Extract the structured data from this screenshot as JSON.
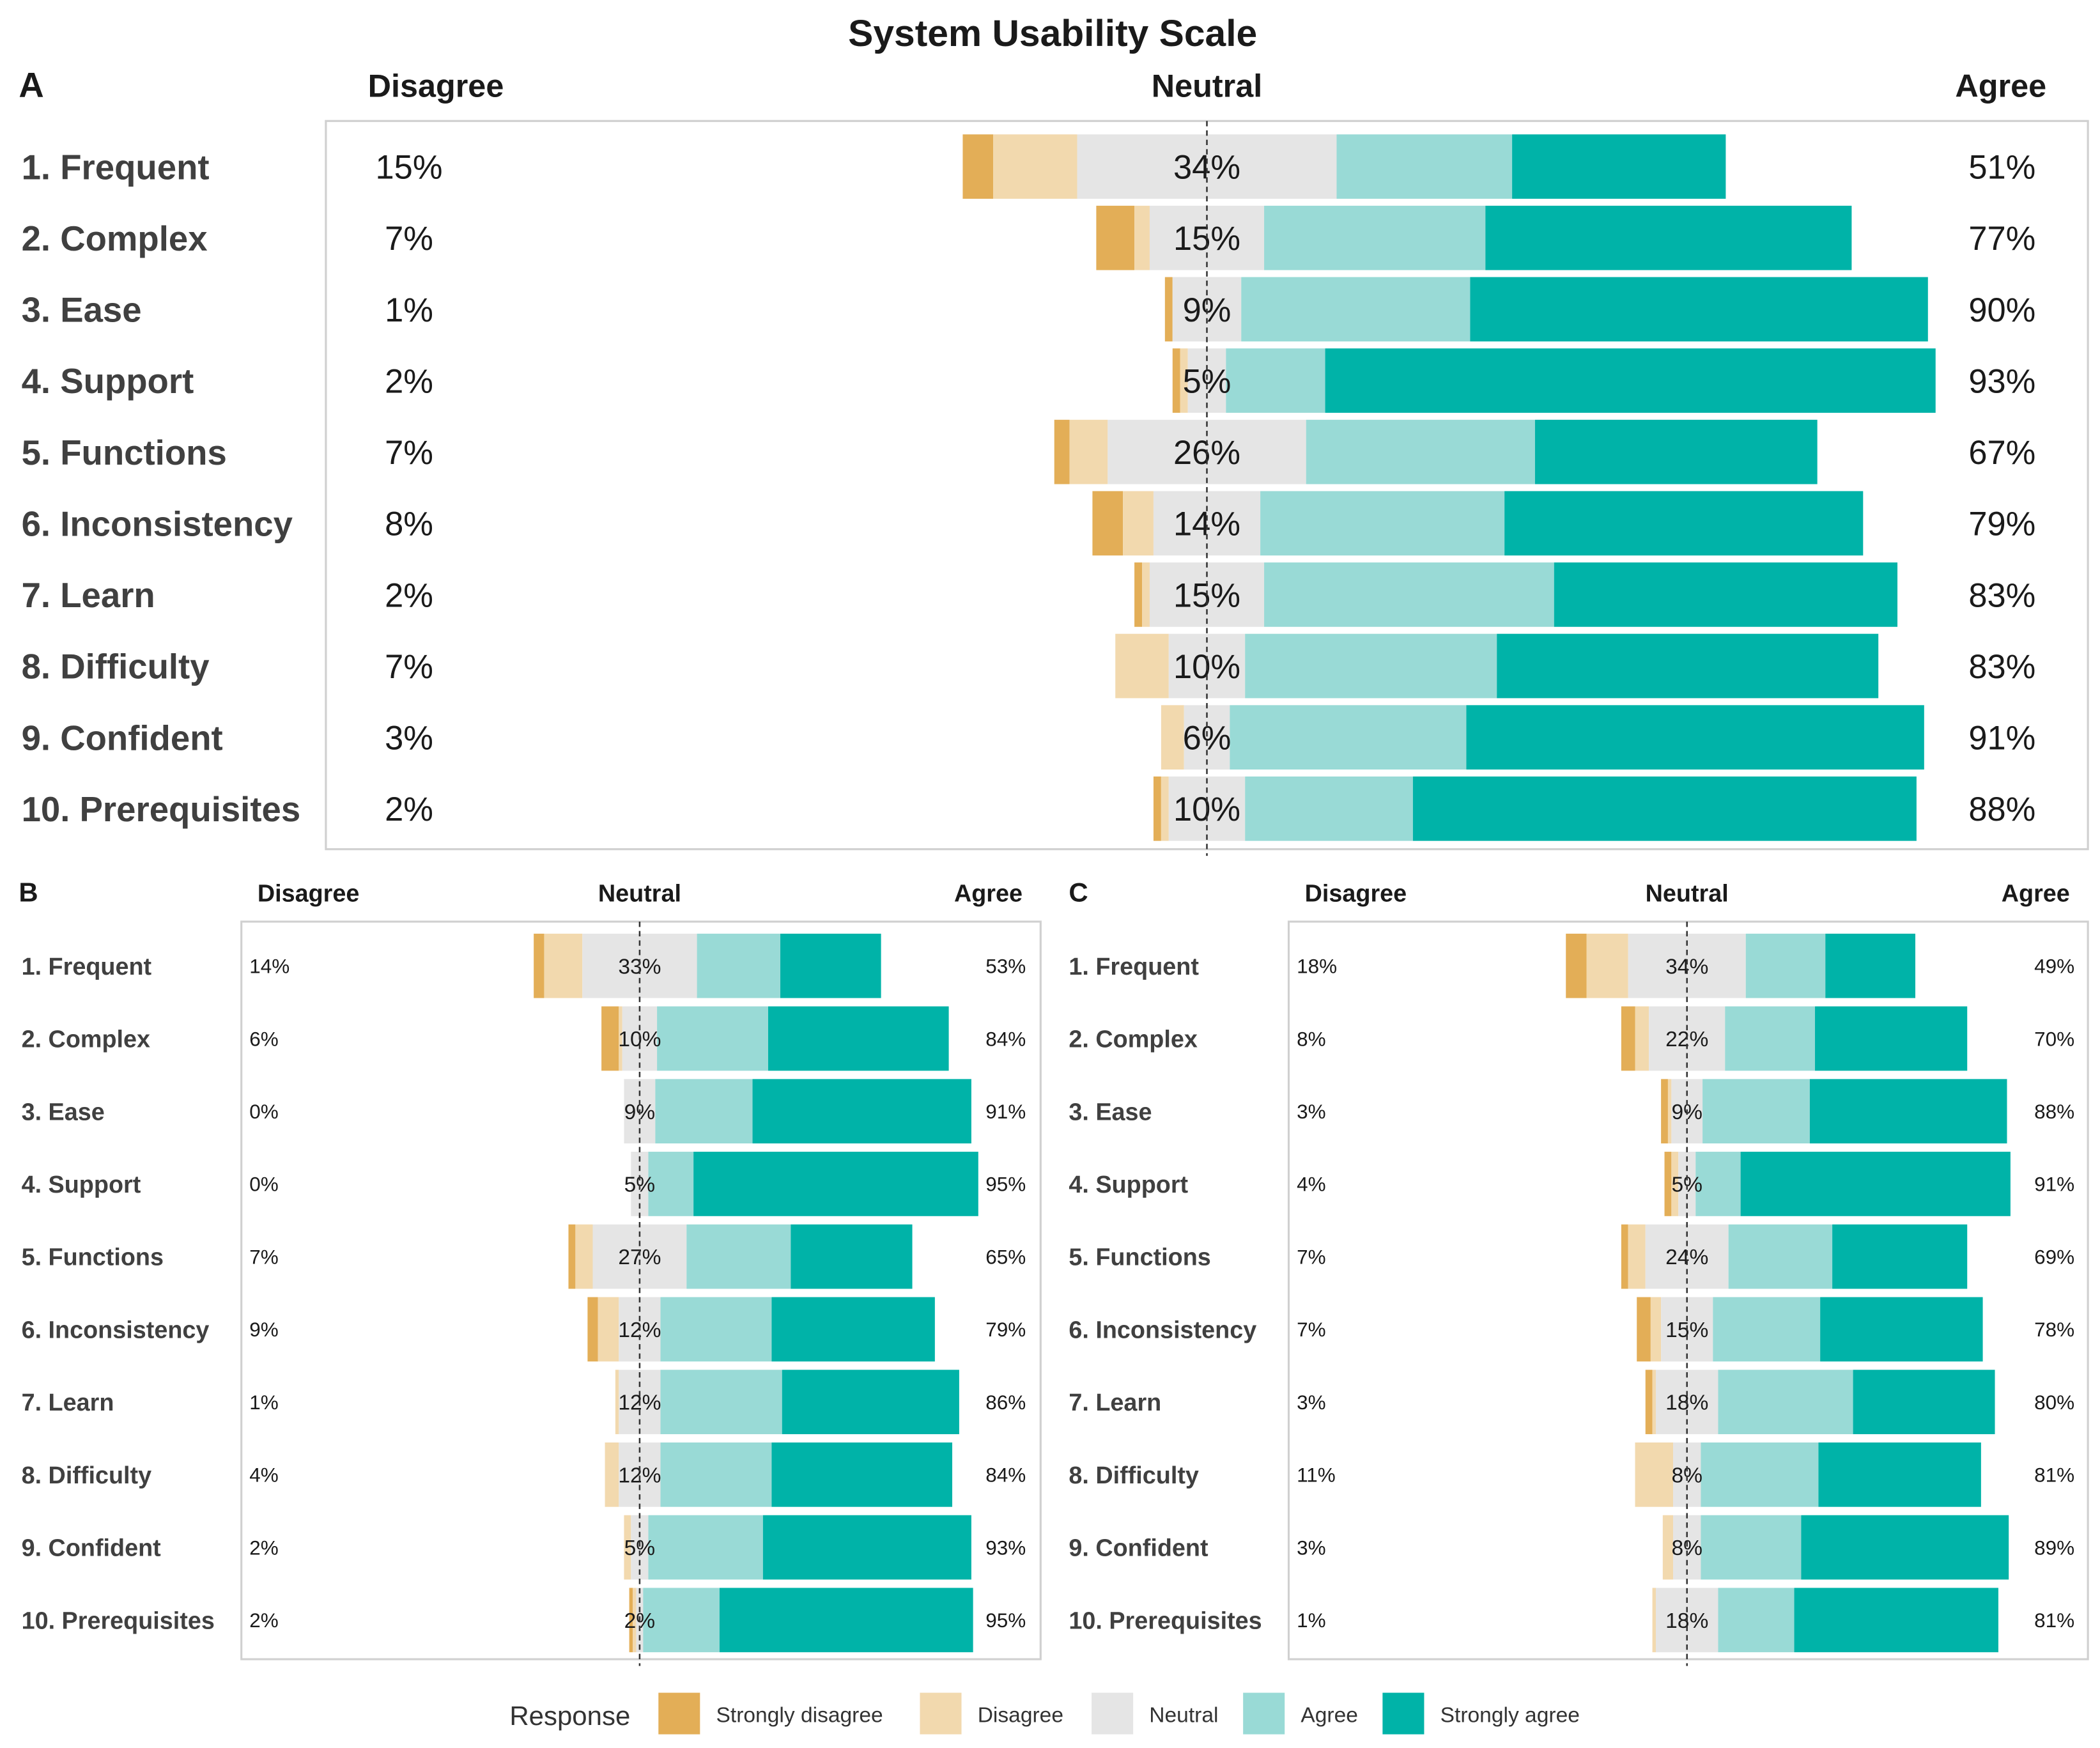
{
  "title": "System Usability Scale",
  "legend": {
    "title": "Response",
    "items": [
      {
        "key": "sd",
        "label": "Strongly disagree",
        "color": "#E3AE57"
      },
      {
        "key": "d",
        "label": "Disagree",
        "color": "#F2D9AE"
      },
      {
        "key": "n",
        "label": "Neutral",
        "color": "#E5E5E5"
      },
      {
        "key": "a",
        "label": "Agree",
        "color": "#99DAD6"
      },
      {
        "key": "sa",
        "label": "Strongly agree",
        "color": "#00B3A8"
      }
    ]
  },
  "chart_data": [
    {
      "type": "bar",
      "subtype": "diverging-stacked-horizontal",
      "panel": "A",
      "headers": {
        "left": "Disagree",
        "center": "Neutral",
        "right": "Agree"
      },
      "categories": [
        "1. Frequent",
        "2. Complex",
        "3. Ease",
        "4. Support",
        "5. Functions",
        "6. Inconsistency",
        "7. Learn",
        "8. Difficulty",
        "9. Confident",
        "10. Prerequisites"
      ],
      "disagree_labels": [
        "15%",
        "7%",
        "1%",
        "2%",
        "7%",
        "8%",
        "2%",
        "7%",
        "3%",
        "2%"
      ],
      "neutral_labels": [
        "34%",
        "15%",
        "9%",
        "5%",
        "26%",
        "14%",
        "15%",
        "10%",
        "6%",
        "10%"
      ],
      "agree_labels": [
        "51%",
        "77%",
        "90%",
        "93%",
        "67%",
        "79%",
        "83%",
        "83%",
        "91%",
        "88%"
      ],
      "series": [
        {
          "name": "Strongly disagree",
          "values": [
            4,
            5,
            1,
            1,
            2,
            4,
            1,
            0,
            0,
            1
          ]
        },
        {
          "name": "Disagree",
          "values": [
            11,
            2,
            0,
            1,
            5,
            4,
            1,
            7,
            3,
            1
          ]
        },
        {
          "name": "Neutral",
          "values": [
            34,
            15,
            9,
            5,
            26,
            14,
            15,
            10,
            6,
            10
          ]
        },
        {
          "name": "Agree",
          "values": [
            23,
            29,
            30,
            13,
            30,
            32,
            38,
            33,
            31,
            22
          ]
        },
        {
          "name": "Strongly agree",
          "values": [
            28,
            48,
            60,
            80,
            37,
            47,
            45,
            50,
            60,
            66
          ]
        }
      ]
    },
    {
      "type": "bar",
      "subtype": "diverging-stacked-horizontal",
      "panel": "B",
      "headers": {
        "left": "Disagree",
        "center": "Neutral",
        "right": "Agree"
      },
      "categories": [
        "1. Frequent",
        "2. Complex",
        "3. Ease",
        "4. Support",
        "5. Functions",
        "6. Inconsistency",
        "7. Learn",
        "8. Difficulty",
        "9. Confident",
        "10. Prerequisites"
      ],
      "disagree_labels": [
        "14%",
        "6%",
        "0%",
        "0%",
        "7%",
        "9%",
        "1%",
        "4%",
        "2%",
        "2%"
      ],
      "neutral_labels": [
        "33%",
        "10%",
        "9%",
        "5%",
        "27%",
        "12%",
        "12%",
        "12%",
        "5%",
        "2%"
      ],
      "agree_labels": [
        "53%",
        "84%",
        "91%",
        "95%",
        "65%",
        "79%",
        "86%",
        "84%",
        "93%",
        "95%"
      ],
      "series": [
        {
          "name": "Strongly disagree",
          "values": [
            3,
            5,
            0,
            0,
            2,
            3,
            0,
            0,
            0,
            1
          ]
        },
        {
          "name": "Disagree",
          "values": [
            11,
            1,
            0,
            0,
            5,
            6,
            1,
            4,
            2,
            1
          ]
        },
        {
          "name": "Neutral",
          "values": [
            33,
            10,
            9,
            5,
            27,
            12,
            12,
            12,
            5,
            2
          ]
        },
        {
          "name": "Agree",
          "values": [
            24,
            32,
            28,
            13,
            30,
            32,
            35,
            32,
            33,
            22
          ]
        },
        {
          "name": "Strongly agree",
          "values": [
            29,
            52,
            63,
            82,
            35,
            47,
            51,
            52,
            60,
            73
          ]
        }
      ]
    },
    {
      "type": "bar",
      "subtype": "diverging-stacked-horizontal",
      "panel": "C",
      "headers": {
        "left": "Disagree",
        "center": "Neutral",
        "right": "Agree"
      },
      "categories": [
        "1. Frequent",
        "2. Complex",
        "3. Ease",
        "4. Support",
        "5. Functions",
        "6. Inconsistency",
        "7. Learn",
        "8. Difficulty",
        "9. Confident",
        "10. Prerequisites"
      ],
      "disagree_labels": [
        "18%",
        "8%",
        "3%",
        "4%",
        "7%",
        "7%",
        "3%",
        "11%",
        "3%",
        "1%"
      ],
      "neutral_labels": [
        "34%",
        "22%",
        "9%",
        "5%",
        "24%",
        "15%",
        "18%",
        "8%",
        "8%",
        "18%"
      ],
      "agree_labels": [
        "49%",
        "70%",
        "88%",
        "91%",
        "69%",
        "78%",
        "80%",
        "81%",
        "89%",
        "81%"
      ],
      "series": [
        {
          "name": "Strongly disagree",
          "values": [
            6,
            4,
            2,
            2,
            2,
            4,
            2,
            0,
            0,
            0
          ]
        },
        {
          "name": "Disagree",
          "values": [
            12,
            4,
            1,
            2,
            5,
            3,
            1,
            11,
            3,
            1
          ]
        },
        {
          "name": "Neutral",
          "values": [
            34,
            22,
            9,
            5,
            24,
            15,
            18,
            8,
            8,
            18
          ]
        },
        {
          "name": "Agree",
          "values": [
            23,
            26,
            31,
            13,
            30,
            31,
            39,
            34,
            29,
            22
          ]
        },
        {
          "name": "Strongly agree",
          "values": [
            26,
            44,
            57,
            78,
            39,
            47,
            41,
            47,
            60,
            59
          ]
        }
      ]
    }
  ]
}
